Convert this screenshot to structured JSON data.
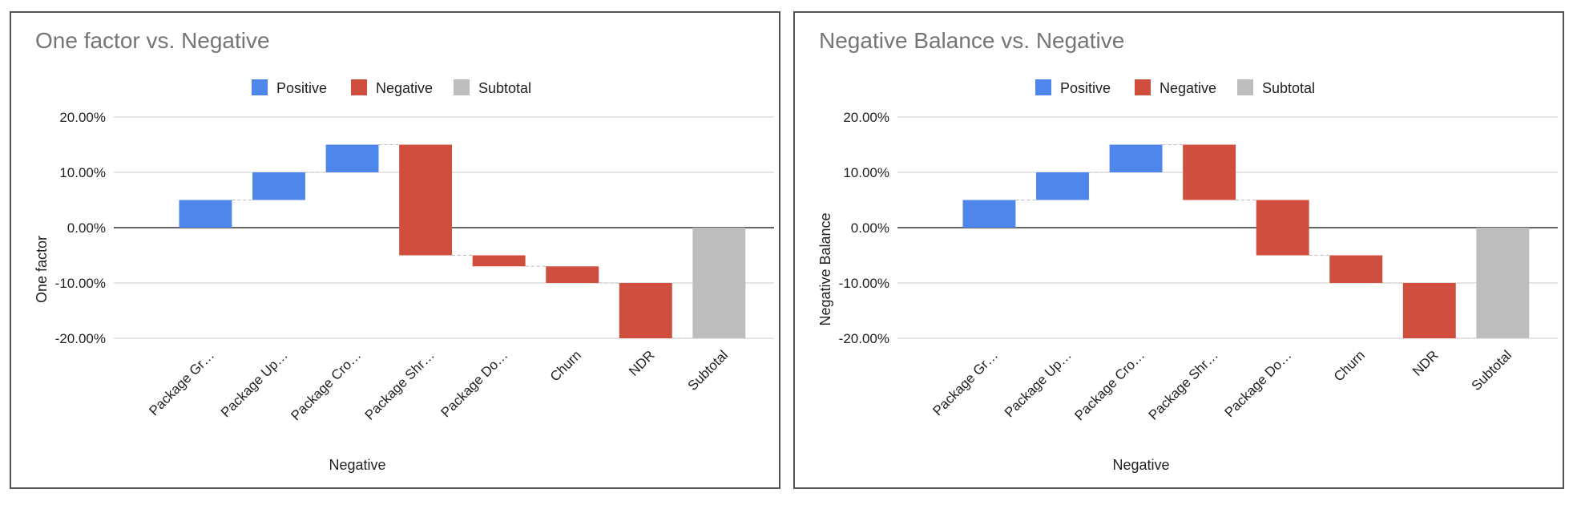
{
  "colors": {
    "positive": "#4f86ec",
    "negative": "#d04e3e",
    "subtotal": "#bdbdbd",
    "grid": "#cccccc",
    "zero_line": "#333333"
  },
  "chart_data": [
    {
      "type": "waterfall",
      "title": "One factor vs. Negative",
      "xlabel": "Negative",
      "ylabel": "One factor",
      "ylim": [
        -0.2,
        0.2
      ],
      "yticks": [
        0.2,
        0.1,
        0.0,
        -0.1,
        -0.2
      ],
      "ytick_labels": [
        "20.00%",
        "10.00%",
        "0.00%",
        "-10.00%",
        "-20.00%"
      ],
      "legend": {
        "position": "top",
        "entries": [
          {
            "name": "Positive",
            "color": "#4f86ec"
          },
          {
            "name": "Negative",
            "color": "#d04e3e"
          },
          {
            "name": "Subtotal",
            "color": "#bdbdbd"
          }
        ]
      },
      "categories": [
        "Package Gr…",
        "Package Up…",
        "Package Cro…",
        "Package Shr…",
        "Package Do…",
        "Churn",
        "NDR",
        "Subtotal"
      ],
      "bars": [
        {
          "kind": "positive",
          "from": 0.0,
          "to": 0.05
        },
        {
          "kind": "positive",
          "from": 0.05,
          "to": 0.1
        },
        {
          "kind": "positive",
          "from": 0.1,
          "to": 0.15
        },
        {
          "kind": "negative",
          "from": 0.15,
          "to": -0.05
        },
        {
          "kind": "negative",
          "from": -0.05,
          "to": -0.07
        },
        {
          "kind": "negative",
          "from": -0.07,
          "to": -0.1
        },
        {
          "kind": "negative",
          "from": -0.1,
          "to": -0.2
        },
        {
          "kind": "subtotal",
          "from": 0.0,
          "to": -0.2
        }
      ]
    },
    {
      "type": "waterfall",
      "title": "Negative Balance vs. Negative",
      "xlabel": "Negative",
      "ylabel": "Negative Balance",
      "ylim": [
        -0.2,
        0.2
      ],
      "yticks": [
        0.2,
        0.1,
        0.0,
        -0.1,
        -0.2
      ],
      "ytick_labels": [
        "20.00%",
        "10.00%",
        "0.00%",
        "-10.00%",
        "-20.00%"
      ],
      "legend": {
        "position": "top",
        "entries": [
          {
            "name": "Positive",
            "color": "#4f86ec"
          },
          {
            "name": "Negative",
            "color": "#d04e3e"
          },
          {
            "name": "Subtotal",
            "color": "#bdbdbd"
          }
        ]
      },
      "categories": [
        "Package Gr…",
        "Package Up…",
        "Package Cro…",
        "Package Shr…",
        "Package Do…",
        "Churn",
        "NDR",
        "Subtotal"
      ],
      "bars": [
        {
          "kind": "positive",
          "from": 0.0,
          "to": 0.05
        },
        {
          "kind": "positive",
          "from": 0.05,
          "to": 0.1
        },
        {
          "kind": "positive",
          "from": 0.1,
          "to": 0.15
        },
        {
          "kind": "negative",
          "from": 0.15,
          "to": 0.05
        },
        {
          "kind": "negative",
          "from": 0.05,
          "to": -0.05
        },
        {
          "kind": "negative",
          "from": -0.05,
          "to": -0.1
        },
        {
          "kind": "negative",
          "from": -0.1,
          "to": -0.2
        },
        {
          "kind": "subtotal",
          "from": 0.0,
          "to": -0.2
        }
      ]
    }
  ]
}
